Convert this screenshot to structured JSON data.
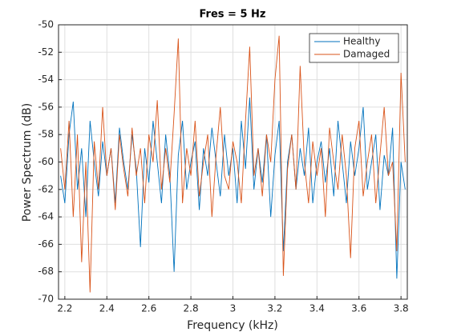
{
  "chart_data": {
    "type": "line",
    "title": "Fres = 5 Hz",
    "x_label": "Frequency (kHz)",
    "y_label": "Power Spectrum (dB)",
    "xlim": [
      2.17,
      3.83
    ],
    "xticks": [
      2.2,
      2.4,
      2.6,
      2.8,
      3,
      3.2,
      3.4,
      3.6,
      3.8
    ],
    "ylim": [
      -70,
      -50
    ],
    "yticks": [
      -70,
      -68,
      -66,
      -64,
      -62,
      -60,
      -58,
      -56,
      -54,
      -52,
      -50
    ],
    "grid": true,
    "legend": "northeast",
    "x": [
      2.18,
      2.2,
      2.22,
      2.24,
      2.26,
      2.28,
      2.3,
      2.32,
      2.34,
      2.36,
      2.38,
      2.4,
      2.42,
      2.44,
      2.46,
      2.48,
      2.5,
      2.52,
      2.54,
      2.56,
      2.58,
      2.6,
      2.62,
      2.64,
      2.66,
      2.68,
      2.7,
      2.72,
      2.74,
      2.76,
      2.78,
      2.8,
      2.82,
      2.84,
      2.86,
      2.88,
      2.9,
      2.92,
      2.94,
      2.96,
      2.98,
      3,
      3.02,
      3.04,
      3.06,
      3.08,
      3.1,
      3.12,
      3.14,
      3.16,
      3.18,
      3.2,
      3.22,
      3.24,
      3.26,
      3.28,
      3.3,
      3.32,
      3.34,
      3.36,
      3.38,
      3.4,
      3.42,
      3.44,
      3.46,
      3.48,
      3.5,
      3.52,
      3.54,
      3.56,
      3.58,
      3.6,
      3.62,
      3.64,
      3.66,
      3.68,
      3.7,
      3.72,
      3.74,
      3.76,
      3.78,
      3.8,
      3.82
    ],
    "series": [
      {
        "name": "Healthy",
        "color": "#0072BD",
        "values": [
          -61,
          -63,
          -58,
          -55.6,
          -62,
          -59,
          -64,
          -57,
          -60,
          -62.5,
          -58.5,
          -61,
          -59,
          -63,
          -57.5,
          -60,
          -62,
          -58,
          -60.5,
          -66.2,
          -59,
          -61.5,
          -57,
          -60,
          -63,
          -58,
          -61,
          -68,
          -59.5,
          -57,
          -62,
          -60,
          -58.5,
          -63.5,
          -59,
          -61,
          -57.5,
          -60,
          -62.5,
          -58,
          -61,
          -59,
          -63,
          -57,
          -60.5,
          -55.3,
          -62,
          -59,
          -61.5,
          -58,
          -64,
          -59.5,
          -57,
          -66.5,
          -60,
          -58,
          -62,
          -59,
          -61,
          -57.5,
          -63,
          -60,
          -58.5,
          -61.5,
          -59,
          -62.5,
          -57,
          -60,
          -63,
          -58.5,
          -61,
          -59,
          -56,
          -62,
          -60,
          -58,
          -63.5,
          -59.5,
          -61,
          -57.5,
          -68.5,
          -60,
          -62
        ]
      },
      {
        "name": "Damaged",
        "color": "#D95319",
        "values": [
          -59,
          -62,
          -57,
          -64,
          -58,
          -67.3,
          -60,
          -69.5,
          -58.5,
          -62,
          -56,
          -61,
          -59,
          -63.5,
          -58,
          -60.5,
          -62.5,
          -57.5,
          -61,
          -59,
          -63,
          -58,
          -60,
          -55.5,
          -62,
          -59,
          -61.5,
          -56.5,
          -51,
          -63,
          -59,
          -61,
          -57,
          -62.5,
          -60,
          -58,
          -64,
          -59.5,
          -56,
          -61,
          -62,
          -58.5,
          -60,
          -63,
          -57,
          -51.6,
          -61,
          -59,
          -62.5,
          -58,
          -60,
          -54,
          -50.8,
          -68.3,
          -60.5,
          -58,
          -62,
          -53,
          -60,
          -63,
          -58.5,
          -61,
          -59,
          -64,
          -57.5,
          -60,
          -62,
          -58,
          -61,
          -67,
          -59,
          -57,
          -62.5,
          -60,
          -58,
          -63,
          -59.5,
          -56,
          -61,
          -60,
          -66.5,
          -53.5,
          -60
        ]
      }
    ]
  }
}
